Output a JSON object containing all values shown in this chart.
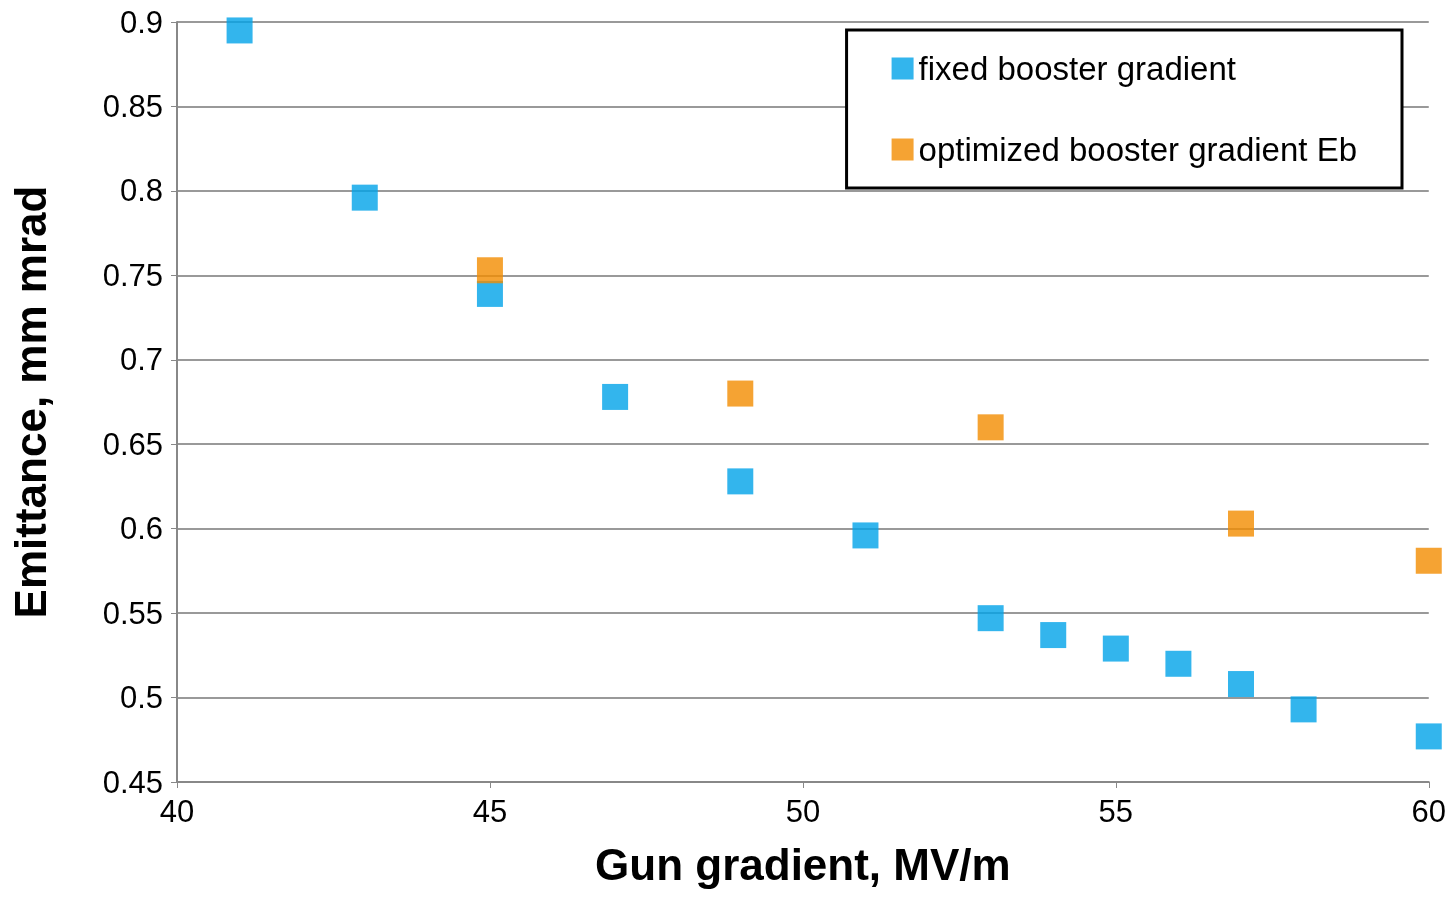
{
  "chart_data": {
    "type": "scatter",
    "xlabel": "Gun gradient, MV/m",
    "ylabel": "Emittance, mm mrad",
    "xlim": [
      40,
      60
    ],
    "xticks": [
      40,
      45,
      50,
      55,
      60
    ],
    "ylim": [
      0.45,
      0.9
    ],
    "yticks": [
      0.45,
      0.5,
      0.55,
      0.6,
      0.65,
      0.7,
      0.75,
      0.8,
      0.85,
      0.9
    ],
    "grid": "y",
    "legend": "top right",
    "marker": "square",
    "series": [
      {
        "name": "fixed booster gradient",
        "color": "#00a2e8",
        "x": [
          41,
          43,
          45,
          47,
          49,
          51,
          53,
          54,
          55,
          56,
          57,
          58,
          60
        ],
        "values": [
          0.895,
          0.796,
          0.739,
          0.678,
          0.628,
          0.596,
          0.547,
          0.537,
          0.529,
          0.52,
          0.508,
          0.493,
          0.477
        ]
      },
      {
        "name": "optimized booster gradient Eb",
        "color": "#f28c00",
        "x": [
          45,
          49,
          53,
          57,
          60
        ],
        "values": [
          0.753,
          0.68,
          0.66,
          0.603,
          0.581
        ]
      }
    ]
  }
}
